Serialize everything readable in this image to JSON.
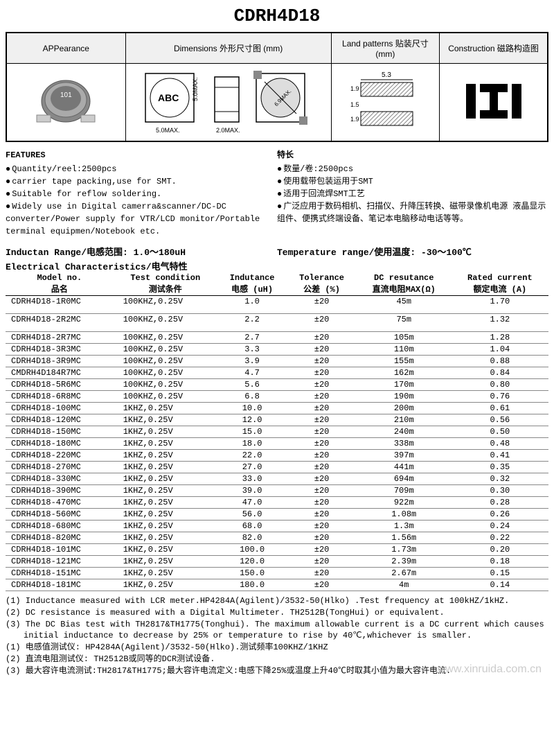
{
  "title": "CDRH4D18",
  "header": {
    "col1": "APPearance",
    "col2": "Dimensions 外形尺寸图 (mm)",
    "col3": "Land patterns\n贴装尺寸 (mm)",
    "col4": "Construction\n磁路构造图",
    "dims": {
      "abc_label": "ABC",
      "width": "5.0MAX.",
      "height": "5.0MAX.",
      "depth": "2.0MAX.",
      "diag": "6.9MAX."
    },
    "land": {
      "w": "5.3",
      "h1": "1.9",
      "h2": "1.5",
      "h3": "1.9"
    }
  },
  "features": {
    "en_title": "FEATURES",
    "cn_title": "特长",
    "en": [
      "Quantity/reel:2500pcs",
      "carrier tape packing,use for SMT.",
      "Suitable for reflow soldering.",
      "Widely use in Digital camerra&scanner/DC-DC converter/Power supply for VTR/LCD monitor/Portable terminal equipmen/Notebook etc."
    ],
    "cn": [
      "数量/卷:2500pcs",
      "使用载带包装运用于SMT",
      "适用于回流焊SMT工艺",
      "广泛应用于数码相机、扫描仪、升降压转换、磁带录像机电源 液晶显示组件、便携式终端设备、笔记本电脑移动电话等等。"
    ]
  },
  "ranges": {
    "inductance": "Inductan Range/电感范围: 1.0～180uH",
    "temperature": "Temperature range/使用温度: -30～100℃"
  },
  "elec_title": "Electrical Characteristics/电气特性",
  "columns": [
    {
      "en": "Model no.",
      "cn": "品名"
    },
    {
      "en": "Test condition",
      "cn": "测试条件"
    },
    {
      "en": "Indutance",
      "cn": "电感 (uH)"
    },
    {
      "en": "Tolerance",
      "cn": "公差 (%)"
    },
    {
      "en": "DC resutance",
      "cn": "直流电阻MAX(Ω)"
    },
    {
      "en": "Rated current",
      "cn": "额定电流 (A)"
    }
  ],
  "rows": [
    {
      "m": "CDRH4D18-1R0MC",
      "tc": "100KHZ,0.25V",
      "ind": "1.0",
      "tol": "±20",
      "dcr": "45m",
      "cur": "1.70",
      "gap": true
    },
    {
      "m": "CDRH4D18-2R2MC",
      "tc": "100KHZ,0.25V",
      "ind": "2.2",
      "tol": "±20",
      "dcr": "75m",
      "cur": "1.32",
      "gap": true
    },
    {
      "m": "CDRH4D18-2R7MC",
      "tc": "100KHZ,0.25V",
      "ind": "2.7",
      "tol": "±20",
      "dcr": "105m",
      "cur": "1.28"
    },
    {
      "m": "CDRH4D18-3R3MC",
      "tc": "100KHZ,0.25V",
      "ind": "3.3",
      "tol": "±20",
      "dcr": "110m",
      "cur": "1.04"
    },
    {
      "m": "CDRH4D18-3R9MC",
      "tc": "100KHZ,0.25V",
      "ind": "3.9",
      "tol": "±20",
      "dcr": "155m",
      "cur": "0.88"
    },
    {
      "m": "CMDRH4D184R7MC",
      "tc": "100KHZ,0.25V",
      "ind": "4.7",
      "tol": "±20",
      "dcr": "162m",
      "cur": "0.84"
    },
    {
      "m": "CDRH4D18-5R6MC",
      "tc": "100KHZ,0.25V",
      "ind": "5.6",
      "tol": "±20",
      "dcr": "170m",
      "cur": "0.80"
    },
    {
      "m": "CDRH4D18-6R8MC",
      "tc": "100KHZ,0.25V",
      "ind": "6.8",
      "tol": "±20",
      "dcr": "190m",
      "cur": "0.76"
    },
    {
      "m": "CDRH4D18-100MC",
      "tc": "1KHZ,0.25V",
      "ind": "10.0",
      "tol": "±20",
      "dcr": "200m",
      "cur": "0.61"
    },
    {
      "m": "CDRH4D18-120MC",
      "tc": "1KHZ,0.25V",
      "ind": "12.0",
      "tol": "±20",
      "dcr": "210m",
      "cur": "0.56"
    },
    {
      "m": "CDRH4D18-150MC",
      "tc": "1KHZ,0.25V",
      "ind": "15.0",
      "tol": "±20",
      "dcr": "240m",
      "cur": "0.50"
    },
    {
      "m": "CDRH4D18-180MC",
      "tc": "1KHZ,0.25V",
      "ind": "18.0",
      "tol": "±20",
      "dcr": "338m",
      "cur": "0.48"
    },
    {
      "m": "CDRH4D18-220MC",
      "tc": "1KHZ,0.25V",
      "ind": "22.0",
      "tol": "±20",
      "dcr": "397m",
      "cur": "0.41"
    },
    {
      "m": "CDRH4D18-270MC",
      "tc": "1KHZ,0.25V",
      "ind": "27.0",
      "tol": "±20",
      "dcr": "441m",
      "cur": "0.35"
    },
    {
      "m": "CDRH4D18-330MC",
      "tc": "1KHZ,0.25V",
      "ind": "33.0",
      "tol": "±20",
      "dcr": "694m",
      "cur": "0.32"
    },
    {
      "m": "CDRH4D18-390MC",
      "tc": "1KHZ,0.25V",
      "ind": "39.0",
      "tol": "±20",
      "dcr": "709m",
      "cur": "0.30"
    },
    {
      "m": "CDRH4D18-470MC",
      "tc": "1KHZ,0.25V",
      "ind": "47.0",
      "tol": "±20",
      "dcr": "922m",
      "cur": "0.28"
    },
    {
      "m": "CDRH4D18-560MC",
      "tc": "1KHZ,0.25V",
      "ind": "56.0",
      "tol": "±20",
      "dcr": "1.08m",
      "cur": "0.26"
    },
    {
      "m": "CDRH4D18-680MC",
      "tc": "1KHZ,0.25V",
      "ind": "68.0",
      "tol": "±20",
      "dcr": "1.3m",
      "cur": "0.24"
    },
    {
      "m": "CDRH4D18-820MC",
      "tc": "1KHZ,0.25V",
      "ind": "82.0",
      "tol": "±20",
      "dcr": "1.56m",
      "cur": "0.22"
    },
    {
      "m": "CDRH4D18-101MC",
      "tc": "1KHZ,0.25V",
      "ind": "100.0",
      "tol": "±20",
      "dcr": "1.73m",
      "cur": "0.20"
    },
    {
      "m": "CDRH4D18-121MC",
      "tc": "1KHZ,0.25V",
      "ind": "120.0",
      "tol": "±20",
      "dcr": "2.39m",
      "cur": "0.18"
    },
    {
      "m": "CDRH4D18-151MC",
      "tc": "1KHZ,0.25V",
      "ind": "150.0",
      "tol": "±20",
      "dcr": "2.67m",
      "cur": "0.15"
    },
    {
      "m": "CDRH4D18-181MC",
      "tc": "1KHZ,0.25V",
      "ind": "180.0",
      "tol": "±20",
      "dcr": "4m",
      "cur": "0.14"
    }
  ],
  "notes": [
    "(1) Inductance measured with LCR meter.HP4284A(Agilent)/3532-50(Hlko) .Test frequency at 100kHZ/1kHZ.",
    "(2) DC resistance is measured with a Digital Multimeter.  TH2512B(TongHui) or equivalent.",
    "(3) The DC Bias test with TH2817&TH1775(Tonghui). The maximum allowable current is a DC current which causes initial inductance to decrease by 25% or temperature to rise by 40℃,whichever is smaller.",
    "(1) 电感值测试仪: HP4284A(Agilent)/3532-50(Hlko).测试频率100KHZ/1KHZ",
    "(2) 直流电阻测试仪: TH2512B或同等的DCR测试设备.",
    "(3) 最大容许电流测试:TH2817&TH1775;最大容许电流定义:电感下降25%或温度上升40℃时取其小值为最大容许电流."
  ],
  "watermark": "www.xinruida.com.cn",
  "colors": {
    "border": "#000000",
    "header_bg": "#f0f0f0",
    "row_border": "#888888",
    "watermark": "#cccccc",
    "hatch": "#888888"
  }
}
